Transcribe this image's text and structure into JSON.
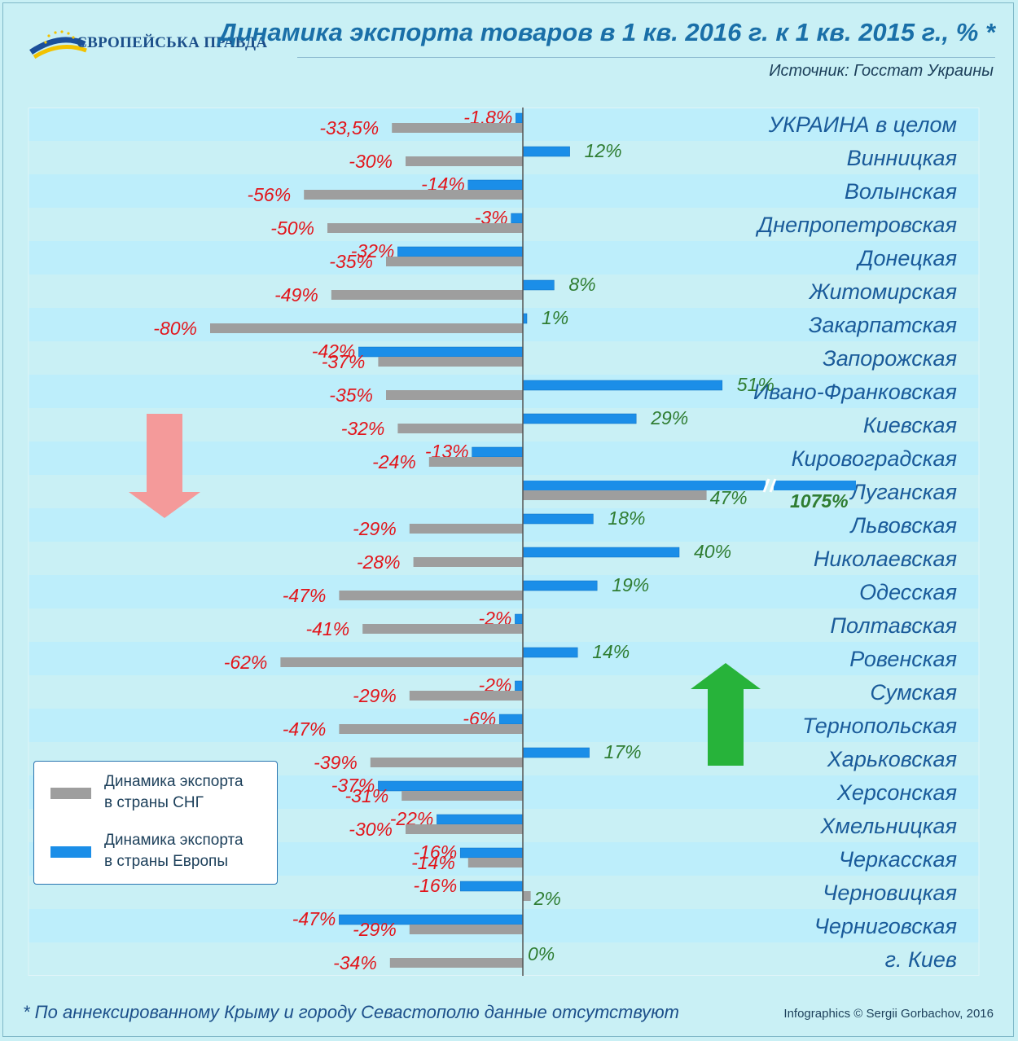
{
  "header": {
    "logo_text": "ЄВРОПЕЙСЬКА ПРАВДА",
    "title": "Динамика экспорта товаров в 1 кв. 2016 г.  к 1 кв. 2015 г., % *",
    "source": "Источник: Госстат Украины"
  },
  "footer": {
    "footnote": "* По аннексированному Крыму и городу Севастополю данные отсутствуют",
    "credit": "Infographics © Sergii Gorbachov, 2016"
  },
  "legend": {
    "cis": "Динамика экспорта\nв страны СНГ",
    "europe": "Динамика экспорта\nв страны Европы"
  },
  "colors": {
    "cis_bar": "#9e9e9e",
    "europe_bar": "#1b8ee8",
    "negative_label": "#e2151b",
    "positive_label": "#2f7d32",
    "band": "#bdeefb",
    "row_label": "#1a5b9a",
    "arrow_down": "#f49a9a",
    "arrow_up": "#27b33a"
  },
  "chart_data": {
    "type": "bar",
    "orientation": "horizontal",
    "series_names": [
      "cis",
      "europe"
    ],
    "categories": [
      "УКРАИНА в целом",
      "Винницкая",
      "Волынская",
      "Днепропетровская",
      "Донецкая",
      "Житомирская",
      "Закарпатская",
      "Запорожская",
      "Ивано-Франковская",
      "Киевская",
      "Кировоградская",
      "Луганская",
      "Львовская",
      "Николаевская",
      "Одесская",
      "Полтавская",
      "Ровенская",
      "Сумская",
      "Тернопольская",
      "Харьковская",
      "Херсонская",
      "Хмельницкая",
      "Черкасская",
      "Черновицкая",
      "Черниговская",
      "г. Киев"
    ],
    "series": [
      {
        "key": "europe",
        "values": [
          -1.8,
          12,
          -14,
          -3,
          -32,
          8,
          1,
          -42,
          51,
          29,
          -13,
          1075,
          18,
          40,
          19,
          -2,
          14,
          -2,
          -6,
          17,
          -37,
          -22,
          -16,
          -16,
          -47,
          0
        ],
        "labels": [
          "-1,8%",
          "12%",
          "-14%",
          "-3%",
          "-32%",
          "8%",
          "1%",
          "-42%",
          "51%",
          "29%",
          "-13%",
          "1075%",
          "18%",
          "40%",
          "19%",
          "-2%",
          "14%",
          "-2%",
          "-6%",
          "17%",
          "-37%",
          "-22%",
          "-16%",
          "-16%",
          "-47%",
          "0%"
        ]
      },
      {
        "key": "cis",
        "values": [
          -33.5,
          -30,
          -56,
          -50,
          -35,
          -49,
          -80,
          -37,
          -35,
          -32,
          -24,
          47,
          -29,
          -28,
          -47,
          -41,
          -62,
          -29,
          -47,
          -39,
          -31,
          -30,
          -14,
          2,
          -29,
          -34
        ],
        "labels": [
          "-33,5%",
          "-30%",
          "-56%",
          "-50%",
          "-35%",
          "-49%",
          "-80%",
          "-37%",
          "-35%",
          "-32%",
          "-24%",
          "47%",
          "-29%",
          "-28%",
          "-47%",
          "-41%",
          "-62%",
          "-29%",
          "-47%",
          "-39%",
          "-31%",
          "-30%",
          "-14%",
          "2%",
          "-29%",
          "-34%"
        ]
      }
    ],
    "broken_axis_category": "Луганская"
  }
}
